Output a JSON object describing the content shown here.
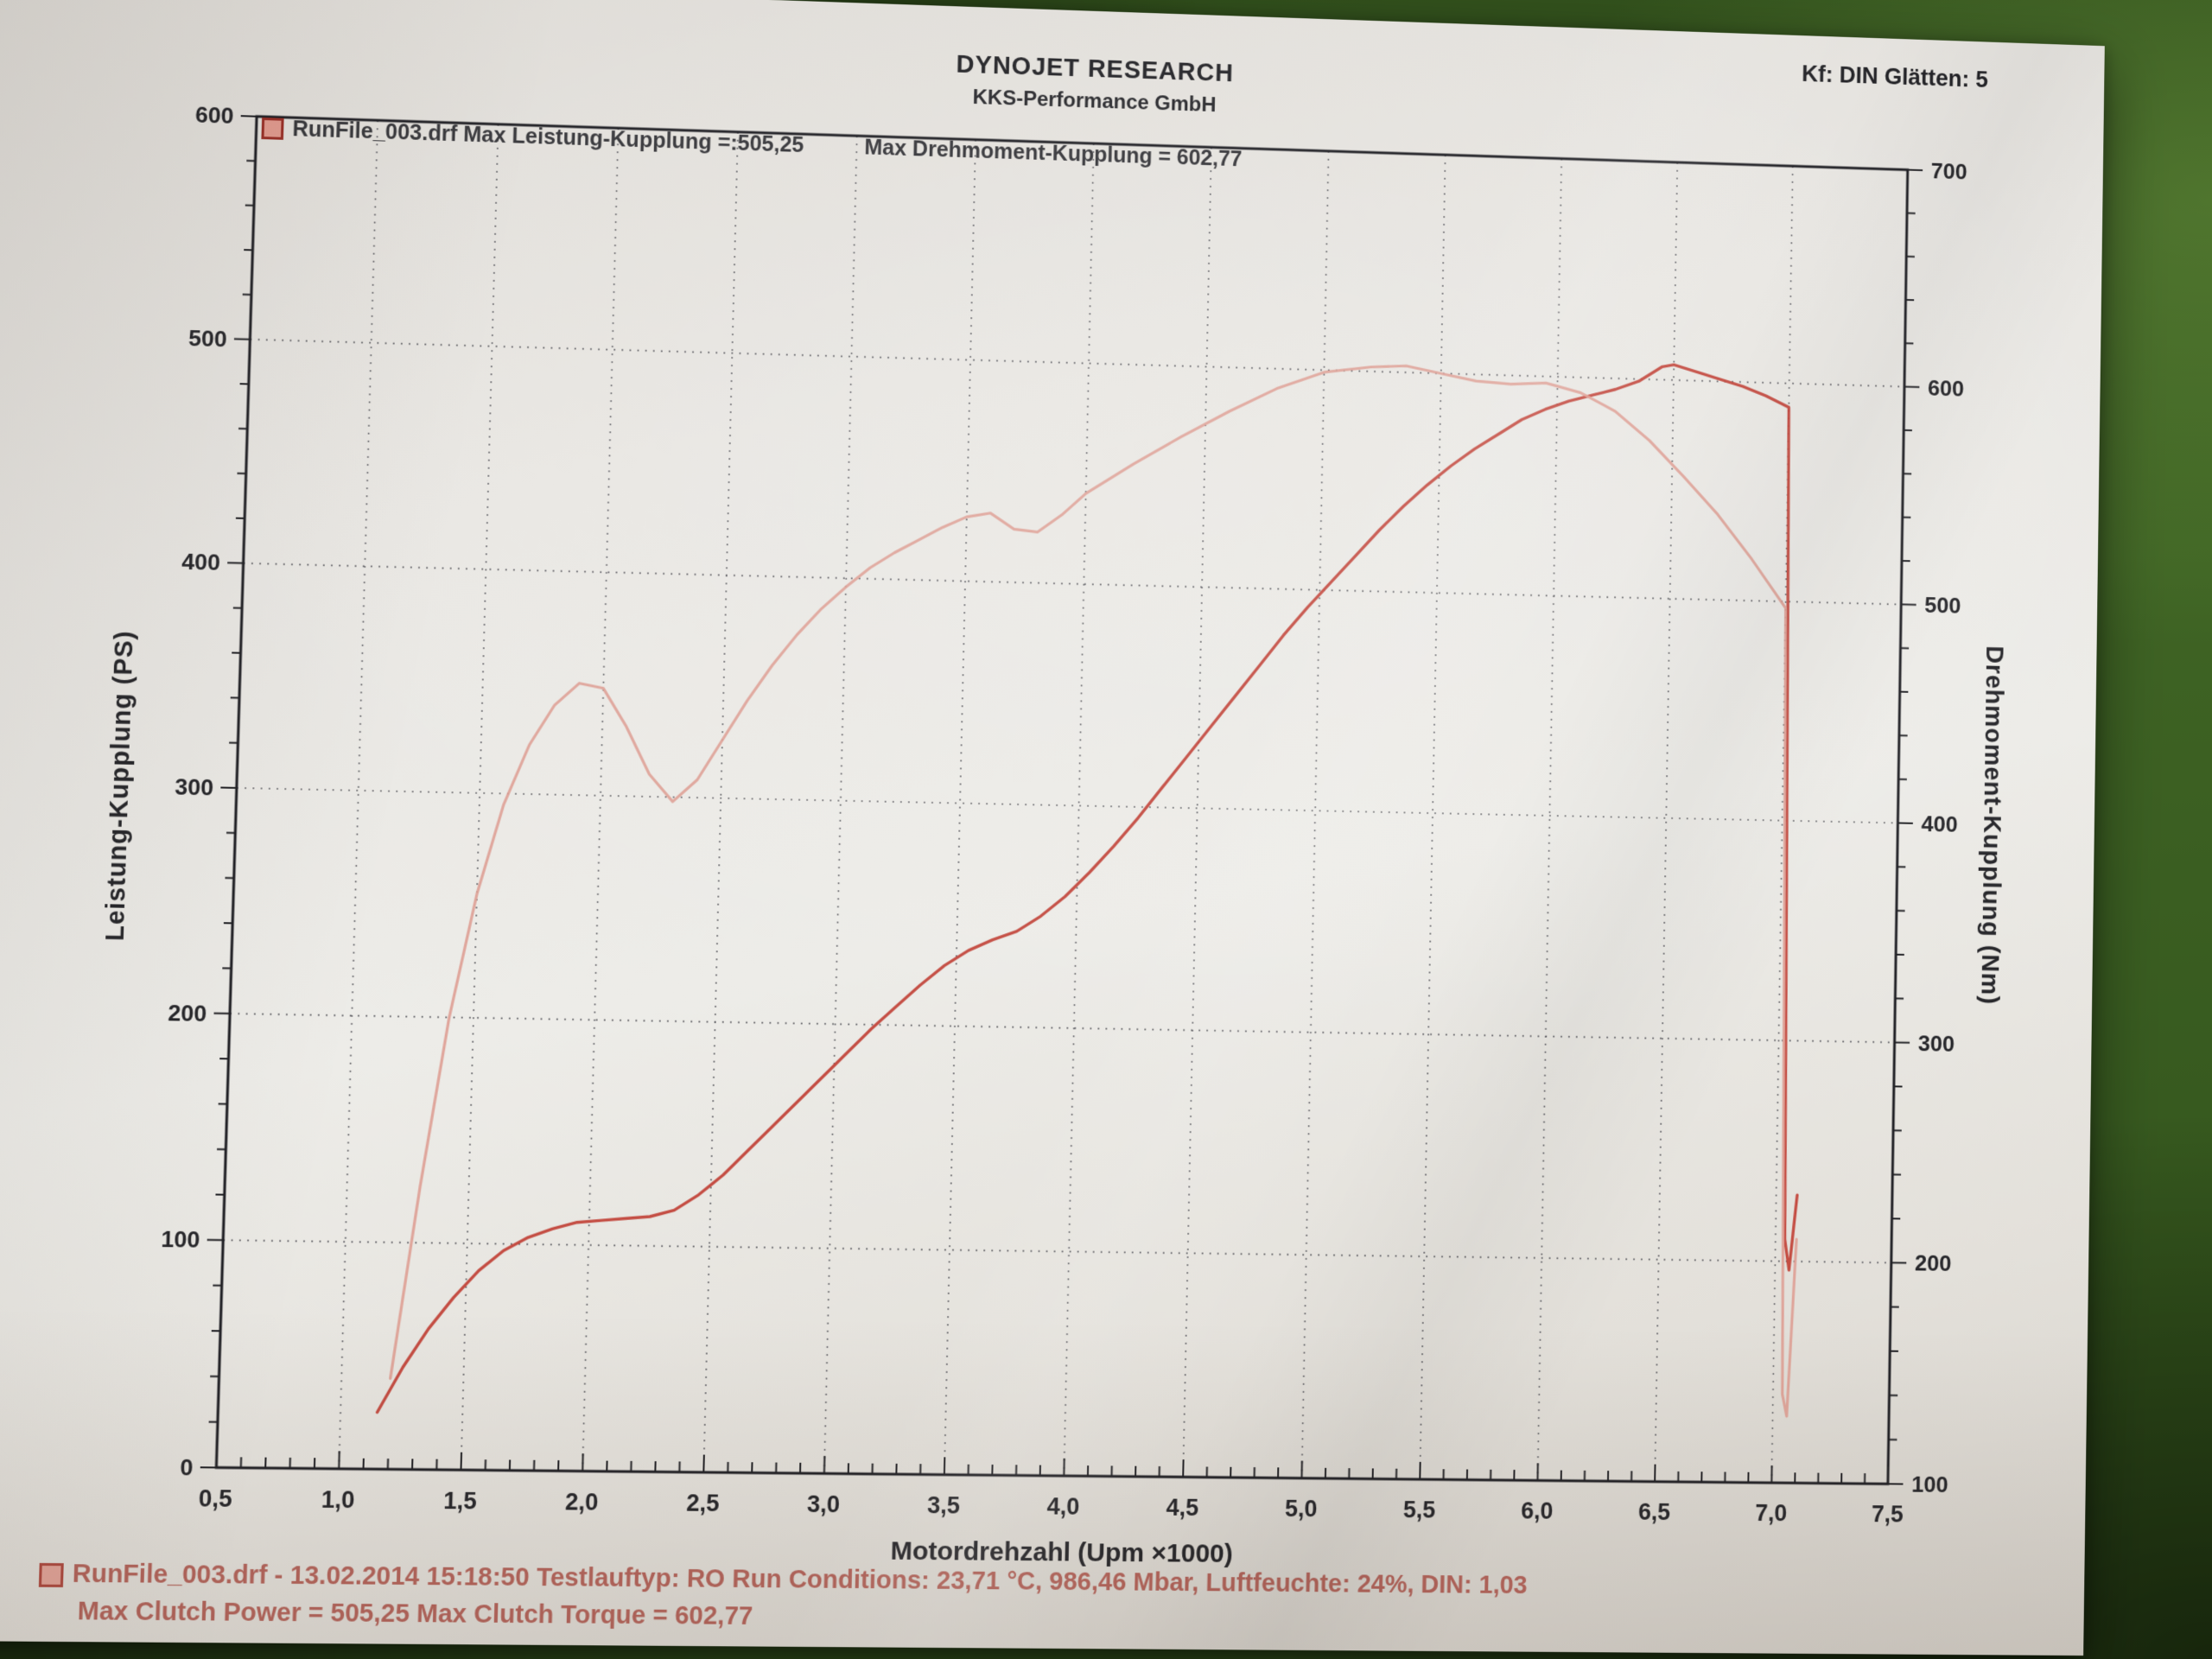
{
  "photo": {
    "table_color": "#3a5c22",
    "paper_color": "#e9e7e3"
  },
  "header": {
    "brand": "DYNOJET RESEARCH",
    "subtitle": "KKS-Performance GmbH",
    "corner_note": "Kf: DIN  Glätten: 5"
  },
  "legend": {
    "swatch_color": "#e09a8e",
    "power_text": "RunFile_003.drf Max Leistung-Kupplung =:505,25",
    "torque_text": "Max Drehmoment-Kupplung = 602,77"
  },
  "footer": {
    "color": "#b5655c",
    "line1": "RunFile_003.drf - 13.02.2014 15:18:50  Testlauftyp: RO  Run Conditions: 23,71 °C, 986,46 Mbar,  Luftfeuchte: 24%, DIN: 1,03",
    "line2": "Max Clutch Power = 505,25  Max Clutch Torque = 602,77"
  },
  "chart_data": {
    "type": "line",
    "title": "",
    "xlabel": "Motordrehzahl (Upm ×1000)",
    "ylabel_left": "Leistung-Kupplung (PS)",
    "ylabel_right": "Drehmoment-Kupplung (Nm)",
    "grid": "dotted",
    "x_range": [
      0.5,
      7.5
    ],
    "y_left_range": [
      0,
      600
    ],
    "y_right_range": [
      100,
      700
    ],
    "x_tick_labels": [
      "0,5",
      "1,0",
      "1,5",
      "2,0",
      "2,5",
      "3,0",
      "3,5",
      "4,0",
      "4,5",
      "5,0",
      "5,5",
      "6,0",
      "6,5",
      "7,0",
      "7,5"
    ],
    "x_tick_values": [
      0.5,
      1,
      1.5,
      2,
      2.5,
      3,
      3.5,
      4,
      4.5,
      5,
      5.5,
      6,
      6.5,
      7,
      7.5
    ],
    "y_left_tick_labels": [
      "0",
      "100",
      "200",
      "300",
      "400",
      "500",
      "600"
    ],
    "y_left_tick_values": [
      0,
      100,
      200,
      300,
      400,
      500,
      600
    ],
    "y_right_tick_labels": [
      "100",
      "200",
      "300",
      "400",
      "500",
      "600",
      "700"
    ],
    "y_right_tick_values": [
      100,
      200,
      300,
      400,
      500,
      600,
      700
    ],
    "run_file": "RunFile_003.drf",
    "run_datetime": "13.02.2014 15:18:50",
    "test_type": "RO",
    "smoothing": "Glätten: 5",
    "correction": "Kf: DIN",
    "max_power_ps": 505.25,
    "max_torque_nm": 602.77,
    "conditions": {
      "temp_c": "23,71",
      "pressure_mbar": "986,46",
      "humidity": "24%",
      "din_factor": "1,03"
    },
    "series": [
      {
        "name": "Leistung-Kupplung",
        "axis": "left",
        "unit": "PS",
        "color": "#c2453a",
        "opacity": 0.95,
        "width": 3.4,
        "points": [
          [
            1.15,
            25
          ],
          [
            1.25,
            45
          ],
          [
            1.35,
            62
          ],
          [
            1.45,
            76
          ],
          [
            1.55,
            88
          ],
          [
            1.65,
            97
          ],
          [
            1.75,
            103
          ],
          [
            1.85,
            107
          ],
          [
            1.95,
            110
          ],
          [
            2.05,
            111
          ],
          [
            2.15,
            112
          ],
          [
            2.25,
            113
          ],
          [
            2.35,
            116
          ],
          [
            2.45,
            123
          ],
          [
            2.55,
            132
          ],
          [
            2.65,
            143
          ],
          [
            2.75,
            154
          ],
          [
            2.85,
            165
          ],
          [
            2.95,
            176
          ],
          [
            3.05,
            187
          ],
          [
            3.15,
            198
          ],
          [
            3.25,
            208
          ],
          [
            3.35,
            218
          ],
          [
            3.45,
            227
          ],
          [
            3.55,
            234
          ],
          [
            3.65,
            239
          ],
          [
            3.75,
            243
          ],
          [
            3.85,
            250
          ],
          [
            3.95,
            259
          ],
          [
            4.05,
            270
          ],
          [
            4.15,
            282
          ],
          [
            4.25,
            295
          ],
          [
            4.35,
            309
          ],
          [
            4.45,
            323
          ],
          [
            4.55,
            337
          ],
          [
            4.65,
            351
          ],
          [
            4.75,
            365
          ],
          [
            4.85,
            379
          ],
          [
            4.95,
            392
          ],
          [
            5.05,
            404
          ],
          [
            5.15,
            416
          ],
          [
            5.25,
            428
          ],
          [
            5.35,
            439
          ],
          [
            5.45,
            449
          ],
          [
            5.55,
            458
          ],
          [
            5.65,
            466
          ],
          [
            5.75,
            473
          ],
          [
            5.85,
            480
          ],
          [
            5.95,
            485
          ],
          [
            6.05,
            489
          ],
          [
            6.15,
            492
          ],
          [
            6.25,
            495
          ],
          [
            6.35,
            499
          ],
          [
            6.45,
            506
          ],
          [
            6.5,
            507
          ],
          [
            6.6,
            504
          ],
          [
            6.7,
            501
          ],
          [
            6.8,
            498
          ],
          [
            6.9,
            494
          ],
          [
            7.0,
            489
          ],
          [
            7.02,
            300
          ],
          [
            7.04,
            110
          ],
          [
            7.06,
            96
          ],
          [
            7.09,
            130
          ]
        ]
      },
      {
        "name": "Drehmoment-Kupplung",
        "axis": "right",
        "unit": "Nm",
        "color": "#de9e93",
        "opacity": 0.9,
        "width": 3.2,
        "points": [
          [
            1.2,
            140
          ],
          [
            1.3,
            225
          ],
          [
            1.4,
            300
          ],
          [
            1.5,
            355
          ],
          [
            1.6,
            395
          ],
          [
            1.7,
            422
          ],
          [
            1.8,
            440
          ],
          [
            1.9,
            450
          ],
          [
            2.0,
            448
          ],
          [
            2.1,
            431
          ],
          [
            2.2,
            410
          ],
          [
            2.3,
            398
          ],
          [
            2.4,
            408
          ],
          [
            2.5,
            426
          ],
          [
            2.6,
            444
          ],
          [
            2.7,
            460
          ],
          [
            2.8,
            474
          ],
          [
            2.9,
            486
          ],
          [
            3.0,
            496
          ],
          [
            3.1,
            505
          ],
          [
            3.2,
            512
          ],
          [
            3.3,
            518
          ],
          [
            3.4,
            524
          ],
          [
            3.5,
            529
          ],
          [
            3.6,
            531
          ],
          [
            3.7,
            524
          ],
          [
            3.8,
            523
          ],
          [
            3.9,
            531
          ],
          [
            4.0,
            541
          ],
          [
            4.2,
            555
          ],
          [
            4.4,
            568
          ],
          [
            4.6,
            580
          ],
          [
            4.8,
            591
          ],
          [
            5.0,
            599
          ],
          [
            5.2,
            602
          ],
          [
            5.35,
            603
          ],
          [
            5.5,
            600
          ],
          [
            5.65,
            597
          ],
          [
            5.8,
            596
          ],
          [
            5.95,
            597
          ],
          [
            6.1,
            593
          ],
          [
            6.25,
            585
          ],
          [
            6.4,
            572
          ],
          [
            6.55,
            556
          ],
          [
            6.7,
            539
          ],
          [
            6.85,
            519
          ],
          [
            7.0,
            497
          ],
          [
            7.02,
            320
          ],
          [
            7.04,
            140
          ],
          [
            7.06,
            130
          ],
          [
            7.09,
            210
          ]
        ]
      }
    ]
  }
}
